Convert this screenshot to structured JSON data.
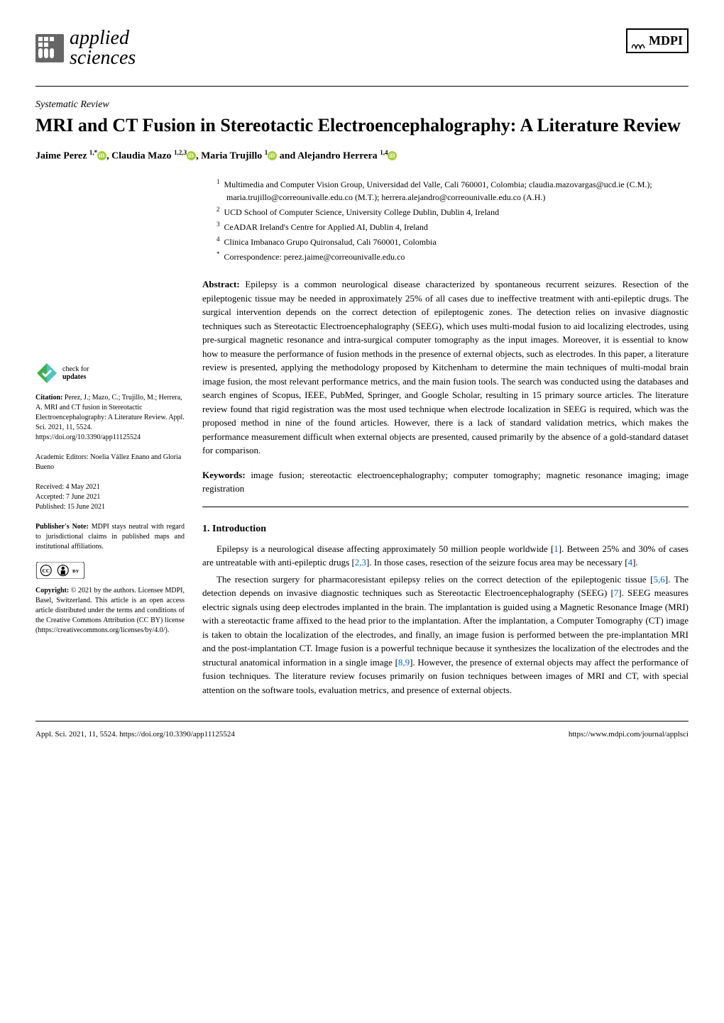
{
  "journal": {
    "name": "applied\nsciences",
    "logo_color": "#4a4a4a"
  },
  "mdpi": {
    "label": "MDPI"
  },
  "article_type": "Systematic Review",
  "title": "MRI and CT Fusion in Stereotactic Electroencephalography: A Literature Review",
  "authors_html": "Jaime Perez",
  "authors": [
    {
      "name": "Jaime Perez",
      "sup": "1,*",
      "orcid": true
    },
    {
      "name": ", Claudia Mazo",
      "sup": "1,2,3",
      "orcid": true
    },
    {
      "name": ", Maria Trujillo",
      "sup": "1",
      "orcid": true
    },
    {
      "name": " and Alejandro Herrera",
      "sup": "1,4",
      "orcid": true
    }
  ],
  "affiliations": [
    {
      "num": "1",
      "text": "Multimedia and Computer Vision Group, Universidad del Valle, Cali 760001, Colombia; claudia.mazovargas@ucd.ie (C.M.); maria.trujillo@correounivalle.edu.co (M.T.); herrera.alejandro@correounivalle.edu.co (A.H.)"
    },
    {
      "num": "2",
      "text": "UCD School of Computer Science, University College Dublin, Dublin 4, Ireland"
    },
    {
      "num": "3",
      "text": "CeADAR Ireland's Centre for Applied AI, Dublin 4, Ireland"
    },
    {
      "num": "4",
      "text": "Clinica Imbanaco Grupo Quironsalud, Cali 760001, Colombia"
    },
    {
      "num": "*",
      "text": "Correspondence: perez.jaime@correounivalle.edu.co"
    }
  ],
  "abstract_label": "Abstract:",
  "abstract": "Epilepsy is a common neurological disease characterized by spontaneous recurrent seizures. Resection of the epileptogenic tissue may be needed in approximately 25% of all cases due to ineffective treatment with anti-epileptic drugs. The surgical intervention depends on the correct detection of epileptogenic zones. The detection relies on invasive diagnostic techniques such as Stereotactic Electroencephalography (SEEG), which uses multi-modal fusion to aid localizing electrodes, using pre-surgical magnetic resonance and intra-surgical computer tomography as the input images. Moreover, it is essential to know how to measure the performance of fusion methods in the presence of external objects, such as electrodes. In this paper, a literature review is presented, applying the methodology proposed by Kitchenham to determine the main techniques of multi-modal brain image fusion, the most relevant performance metrics, and the main fusion tools. The search was conducted using the databases and search engines of Scopus, IEEE, PubMed, Springer, and Google Scholar, resulting in 15 primary source articles. The literature review found that rigid registration was the most used technique when electrode localization in SEEG is required, which was the proposed method in nine of the found articles. However, there is a lack of standard validation metrics, which makes the performance measurement difficult when external objects are presented, caused primarily by the absence of a gold-standard dataset for comparison.",
  "keywords_label": "Keywords:",
  "keywords": "image fusion; stereotactic electroencephalography; computer tomography; magnetic resonance imaging; image registration",
  "section1_heading": "1. Introduction",
  "intro_p1": "Epilepsy is a neurological disease affecting approximately 50 million people worldwide [1]. Between 25% and 30% of cases are untreatable with anti-epileptic drugs [2,3]. In those cases, resection of the seizure focus area may be necessary [4].",
  "intro_p2": "The resection surgery for pharmacoresistant epilepsy relies on the correct detection of the epileptogenic tissue [5,6]. The detection depends on invasive diagnostic techniques such as Stereotactic Electroencephalography (SEEG) [7]. SEEG measures electric signals using deep electrodes implanted in the brain. The implantation is guided using a Magnetic Resonance Image (MRI) with a stereotactic frame affixed to the head prior to the implantation. After the implantation, a Computer Tomography (CT) image is taken to obtain the localization of the electrodes, and finally, an image fusion is performed between the pre-implantation MRI and the post-implantation CT. Image fusion is a powerful technique because it synthesizes the localization of the electrodes and the structural anatomical information in a single image [8,9]. However, the presence of external objects may affect the performance of fusion techniques. The literature review focuses primarily on fusion techniques between images of MRI and CT, with special attention on the software tools, evaluation metrics, and presence of external objects.",
  "sidebar": {
    "check_updates": {
      "line1": "check for",
      "line2": "updates"
    },
    "citation_label": "Citation:",
    "citation": "Perez, J.; Mazo, C.; Trujillo, M.; Herrera, A. MRI and CT fusion in Stereotactic Electroencephalography: A Literature Review. Appl. Sci. 2021, 11, 5524. https://doi.org/10.3390/app11125524",
    "editors_label": "Academic Editors:",
    "editors": "Noelia Vállez Enano and Gloria Bueno",
    "received": "Received: 4 May 2021",
    "accepted": "Accepted: 7 June 2021",
    "published": "Published: 15 June 2021",
    "note_label": "Publisher's Note:",
    "note": "MDPI stays neutral with regard to jurisdictional claims in published maps and institutional affiliations.",
    "copyright_label": "Copyright:",
    "copyright": "© 2021 by the authors. Licensee MDPI, Basel, Switzerland. This article is an open access article distributed under the terms and conditions of the Creative Commons Attribution (CC BY) license (https://creativecommons.org/licenses/by/4.0/)."
  },
  "footer": {
    "left": "Appl. Sci. 2021, 11, 5524. https://doi.org/10.3390/app11125524",
    "right": "https://www.mdpi.com/journal/applsci"
  },
  "colors": {
    "orcid": "#a6ce39",
    "link": "#0066cc",
    "check_green": "#3eb049",
    "check_teal": "#4ec3c7",
    "cc_bg": "#ffffff",
    "cc_border": "#000000"
  }
}
